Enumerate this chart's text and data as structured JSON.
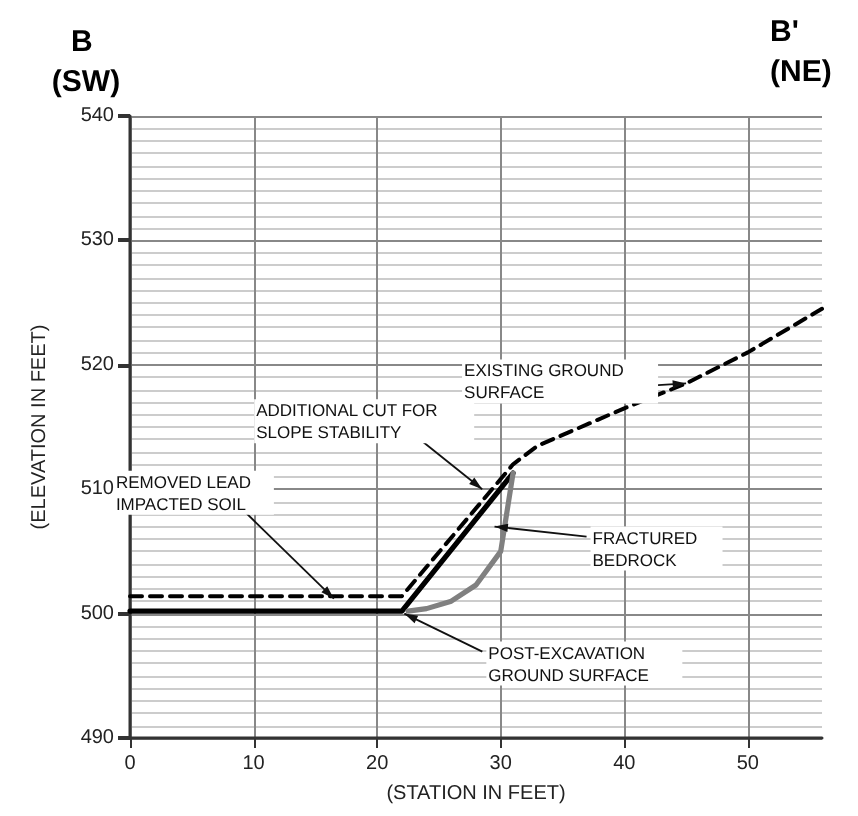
{
  "chart_data": {
    "type": "line",
    "title": "B (SW)",
    "xlabel": "(STATION IN FEET)",
    "ylabel": "(ELEVATION IN FEET)",
    "xlim": [
      0,
      56
    ],
    "xticks": [
      0,
      10,
      20,
      30,
      40,
      50
    ],
    "ylim": [
      490,
      540
    ],
    "yticks": [
      490,
      500,
      510,
      520,
      530,
      540
    ],
    "grid": true,
    "marker": "none",
    "series": [
      {
        "type": "line",
        "color": "#000000",
        "line_style": "solid",
        "x": [
          0,
          22,
          31
        ],
        "values": [
          500.2,
          500.2,
          511.3
        ]
      },
      {
        "type": "line",
        "color": "#808080",
        "line_style": "solid",
        "x": [
          22.5,
          24,
          26,
          28,
          30,
          31
        ],
        "values": [
          500.2,
          500.4,
          501,
          502.3,
          505,
          511.3
        ]
      },
      {
        "type": "line",
        "color": "#000000",
        "line_style": "dashed",
        "x": [
          0,
          22,
          31,
          33,
          40,
          45,
          50,
          56
        ],
        "values": [
          501.4,
          501.4,
          512,
          513.5,
          516.5,
          518.5,
          521,
          524.5
        ]
      }
    ],
    "annotations": [
      "B' (NE)",
      {
        "text": "EXISTING GROUND SURFACE",
        "x": 45,
        "y": 518.5
      },
      {
        "text": "ADDITIONAL CUT FOR SLOPE STABILITY",
        "x": 28.5,
        "y": 510
      },
      {
        "text": "REMOVED LEAD IMPACTED SOIL",
        "x": 16.5,
        "y": 501.2
      },
      {
        "text": "FRACTURED BEDROCK",
        "x": 29.5,
        "y": 507
      },
      {
        "text": "POST-EXCAVATION GROUND SURFACE",
        "x": 22.2,
        "y": 500
      }
    ]
  }
}
